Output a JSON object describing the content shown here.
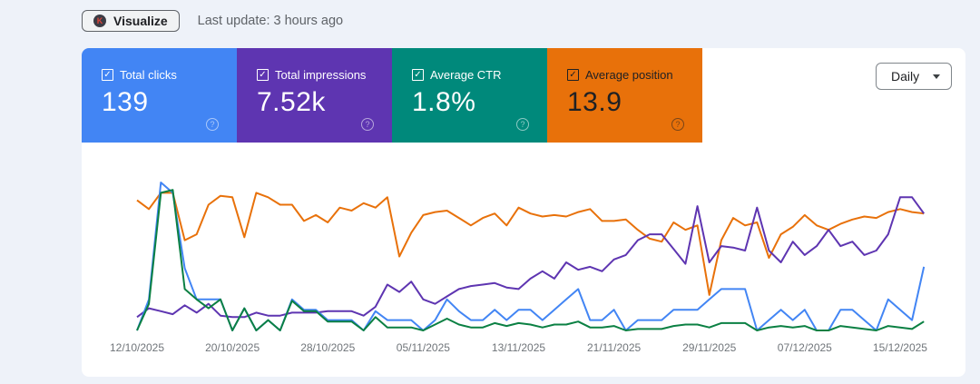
{
  "header": {
    "visualize_label": "Visualize",
    "logo_letter": "K",
    "last_update": "Last update: 3 hours ago"
  },
  "cards": [
    {
      "label": "Total clicks",
      "value": "139",
      "color": "#4285f4",
      "text_color": "#ffffff",
      "checked": true
    },
    {
      "label": "Total impressions",
      "value": "7.52k",
      "color": "#5e35b1",
      "text_color": "#ffffff",
      "checked": true
    },
    {
      "label": "Average CTR",
      "value": "1.8%",
      "color": "#00897b",
      "text_color": "#ffffff",
      "checked": true
    },
    {
      "label": "Average position",
      "value": "13.9",
      "color": "#e8710a",
      "text_color": "#202124",
      "checked": true
    }
  ],
  "granularity": {
    "selected": "Daily"
  },
  "icons": {
    "checkbox": "checkbox-checked-icon",
    "help": "help-circle-icon",
    "dropdown": "caret-down-icon"
  },
  "chart_data": {
    "type": "line",
    "title": "",
    "xlabel": "",
    "ylabel": "",
    "x_start": "12/10/2025",
    "x_end": "17/12/2025",
    "x_tick_labels": [
      "12/10/2025",
      "20/10/2025",
      "28/10/2025",
      "05/11/2025",
      "13/11/2025",
      "21/11/2025",
      "29/11/2025",
      "07/12/2025",
      "15/12/2025"
    ],
    "x_tick_every_days": 8,
    "grid": false,
    "legend": "none",
    "y_note": "values normalized 0–1 per series (no y axis shown); position axis inverted",
    "series": [
      {
        "name": "Average position",
        "color": "#e8710a",
        "values": [
          0.88,
          0.82,
          0.93,
          0.93,
          0.61,
          0.65,
          0.85,
          0.91,
          0.9,
          0.63,
          0.93,
          0.9,
          0.85,
          0.85,
          0.74,
          0.78,
          0.73,
          0.83,
          0.81,
          0.86,
          0.83,
          0.9,
          0.5,
          0.66,
          0.78,
          0.8,
          0.81,
          0.76,
          0.71,
          0.76,
          0.79,
          0.71,
          0.83,
          0.79,
          0.77,
          0.78,
          0.77,
          0.8,
          0.82,
          0.74,
          0.74,
          0.75,
          0.68,
          0.62,
          0.6,
          0.73,
          0.68,
          0.71,
          0.24,
          0.61,
          0.76,
          0.71,
          0.73,
          0.49,
          0.65,
          0.7,
          0.78,
          0.71,
          0.68,
          0.72,
          0.75,
          0.77,
          0.76,
          0.8,
          0.82,
          0.8,
          0.79
        ]
      },
      {
        "name": "Total impressions",
        "color": "#5e35b1",
        "values": [
          0.09,
          0.15,
          0.13,
          0.11,
          0.17,
          0.12,
          0.18,
          0.1,
          0.09,
          0.09,
          0.12,
          0.1,
          0.1,
          0.12,
          0.12,
          0.12,
          0.13,
          0.13,
          0.13,
          0.1,
          0.16,
          0.31,
          0.26,
          0.33,
          0.21,
          0.18,
          0.23,
          0.28,
          0.3,
          0.31,
          0.32,
          0.29,
          0.28,
          0.35,
          0.4,
          0.35,
          0.46,
          0.41,
          0.43,
          0.4,
          0.48,
          0.51,
          0.61,
          0.65,
          0.65,
          0.55,
          0.45,
          0.84,
          0.46,
          0.57,
          0.56,
          0.54,
          0.83,
          0.54,
          0.46,
          0.6,
          0.51,
          0.57,
          0.68,
          0.57,
          0.6,
          0.51,
          0.54,
          0.65,
          0.9,
          0.9,
          0.79
        ]
      },
      {
        "name": "Total clicks",
        "color": "#4285f4",
        "values": [
          0.0,
          0.21,
          1.0,
          0.93,
          0.42,
          0.21,
          0.21,
          0.21,
          0.0,
          0.15,
          0.0,
          0.07,
          0.0,
          0.21,
          0.14,
          0.14,
          0.07,
          0.07,
          0.07,
          0.0,
          0.13,
          0.07,
          0.07,
          0.07,
          0.0,
          0.07,
          0.21,
          0.13,
          0.07,
          0.07,
          0.14,
          0.07,
          0.14,
          0.14,
          0.07,
          0.14,
          0.21,
          0.28,
          0.07,
          0.07,
          0.14,
          0.0,
          0.07,
          0.07,
          0.07,
          0.14,
          0.14,
          0.14,
          0.21,
          0.28,
          0.28,
          0.28,
          0.0,
          0.07,
          0.14,
          0.07,
          0.14,
          0.0,
          0.0,
          0.14,
          0.14,
          0.07,
          0.0,
          0.21,
          0.14,
          0.07,
          0.43
        ]
      },
      {
        "name": "Average CTR",
        "color": "#0b8043",
        "values": [
          0.0,
          0.18,
          0.93,
          0.95,
          0.28,
          0.21,
          0.15,
          0.21,
          0.0,
          0.15,
          0.0,
          0.07,
          0.0,
          0.2,
          0.13,
          0.13,
          0.06,
          0.06,
          0.06,
          0.0,
          0.09,
          0.02,
          0.02,
          0.02,
          0.0,
          0.04,
          0.08,
          0.04,
          0.02,
          0.02,
          0.05,
          0.03,
          0.05,
          0.04,
          0.02,
          0.04,
          0.04,
          0.06,
          0.02,
          0.02,
          0.03,
          0.0,
          0.01,
          0.01,
          0.01,
          0.03,
          0.04,
          0.04,
          0.02,
          0.05,
          0.05,
          0.05,
          0.0,
          0.02,
          0.03,
          0.02,
          0.03,
          0.0,
          0.0,
          0.03,
          0.02,
          0.01,
          0.0,
          0.03,
          0.02,
          0.01,
          0.06
        ]
      }
    ]
  }
}
